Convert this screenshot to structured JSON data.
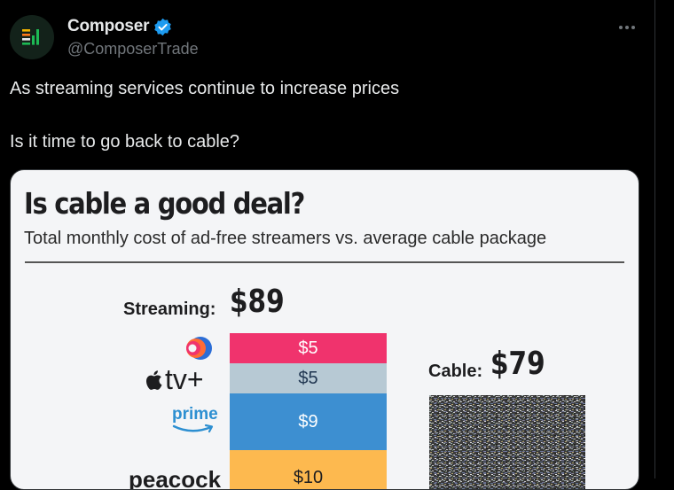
{
  "tweet": {
    "display_name": "Composer",
    "handle": "@ComposerTrade",
    "text_line1": "As streaming services continue to increase prices",
    "text_line2": "Is it time to go back to cable?",
    "icons": [
      "composer-logo-icon",
      "verified-badge-icon",
      "more-options-icon"
    ],
    "verified_color": "#1d9bf0"
  },
  "chart": {
    "title": "Is cable a good deal?",
    "subtitle": "Total monthly cost of ad-free streamers vs. average cable package",
    "streaming_label": "Streaming:",
    "streaming_total": "$89",
    "cable_label": "Cable:",
    "cable_total": "$79",
    "logos": {
      "appletv": "tv+",
      "prime": "prime",
      "peacock": "peacock"
    }
  },
  "chart_data": {
    "type": "bar",
    "title": "Is cable a good deal?",
    "subtitle": "Total monthly cost of ad-free streamers vs. average cable package",
    "stacked": true,
    "categories": [
      "Streaming",
      "Cable"
    ],
    "totals": {
      "Streaming": 89,
      "Cable": 79
    },
    "streaming_segments": [
      {
        "service": "discovery+",
        "value": 5,
        "label": "$5",
        "color": "#f0336d"
      },
      {
        "service": "Apple TV+",
        "value": 5,
        "label": "$5",
        "color": "#b7c9d4"
      },
      {
        "service": "Prime Video",
        "value": 9,
        "label": "$9",
        "color": "#3d8fd1"
      },
      {
        "service": "Peacock",
        "value": 10,
        "label": "$10",
        "color": "#fdb94f"
      }
    ]
  }
}
